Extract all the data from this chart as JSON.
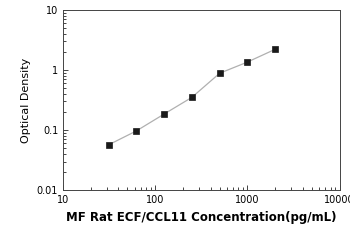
{
  "x_data": [
    31.25,
    62.5,
    125,
    250,
    500,
    1000,
    2000
  ],
  "y_data": [
    0.057,
    0.097,
    0.185,
    0.35,
    0.88,
    1.35,
    2.2
  ],
  "xlabel": "MF Rat ECF/CCL11 Concentration(pg/mL)",
  "ylabel": "Optical Density",
  "xlim": [
    10,
    10000
  ],
  "ylim": [
    0.01,
    10
  ],
  "x_ticks": [
    10,
    100,
    1000,
    10000
  ],
  "x_tick_labels": [
    "10",
    "100",
    "1000",
    "10000"
  ],
  "y_ticks": [
    0.01,
    0.1,
    1,
    10
  ],
  "y_tick_labels": [
    "0.01",
    "0.1",
    "1",
    "10"
  ],
  "line_color": "#b0b0b0",
  "marker_color": "#1a1a1a",
  "marker_size": 4.5,
  "line_width": 0.9,
  "xlabel_fontsize": 8.5,
  "ylabel_fontsize": 8,
  "tick_fontsize": 7,
  "background_color": "#ffffff"
}
